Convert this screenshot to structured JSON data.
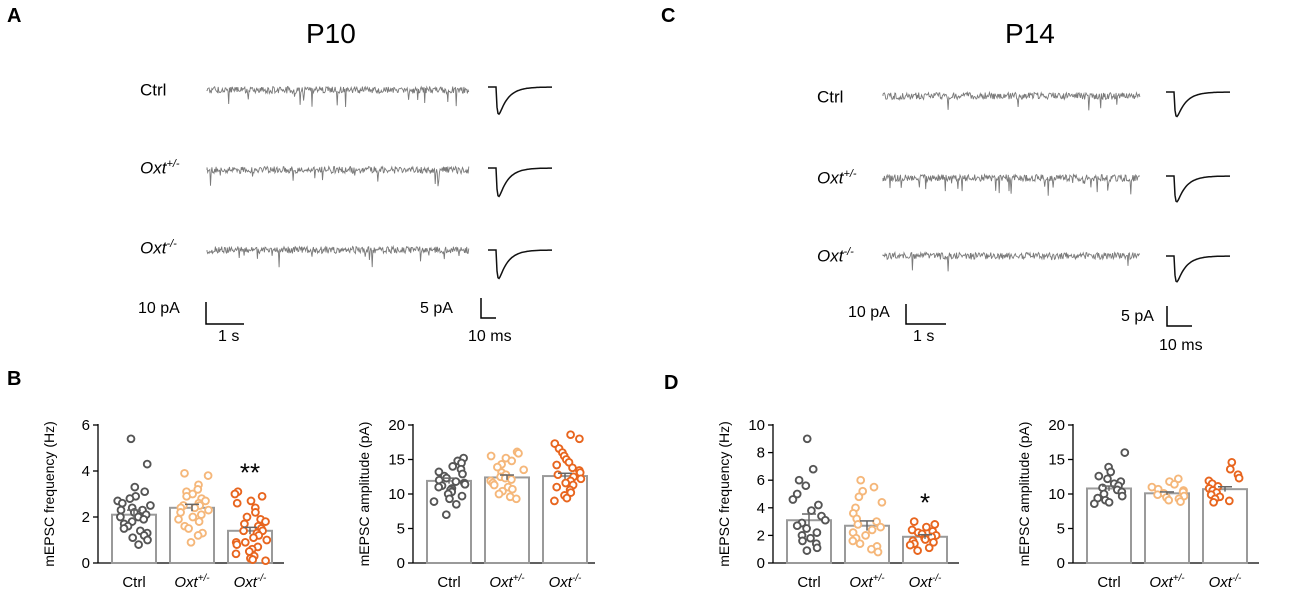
{
  "panels": {
    "A": {
      "letter": "A",
      "title": "P10",
      "rows": [
        {
          "label_main": "Ctrl",
          "label_sup": ""
        },
        {
          "label_main": "Oxt",
          "label_sup": "+/-"
        },
        {
          "label_main": "Oxt",
          "label_sup": "-/-"
        }
      ],
      "scale_trace": {
        "amp": "10 pA",
        "time": "1 s"
      },
      "scale_event": {
        "amp": "5 pA",
        "time": "10 ms"
      }
    },
    "C": {
      "letter": "C",
      "title": "P14",
      "rows": [
        {
          "label_main": "Ctrl",
          "label_sup": ""
        },
        {
          "label_main": "Oxt",
          "label_sup": "+/-"
        },
        {
          "label_main": "Oxt",
          "label_sup": "-/-"
        }
      ],
      "scale_trace": {
        "amp": "10 pA",
        "time": "1 s"
      },
      "scale_event": {
        "amp": "5 pA",
        "time": "10 ms"
      }
    },
    "B": {
      "letter": "B"
    },
    "D": {
      "letter": "D"
    }
  },
  "colors": {
    "trace": "#7a7a7a",
    "event": "#111111",
    "ctrl": "#555555",
    "het": "#f5b77a",
    "ko": "#e8651e"
  },
  "chart_data": [
    {
      "id": "B-frequency",
      "type": "bar",
      "ylabel": "mEPSC frequency (Hz)",
      "ylim": [
        0,
        6
      ],
      "yticks": [
        0,
        2,
        4,
        6
      ],
      "categories": [
        {
          "main": "Ctrl",
          "sup": ""
        },
        {
          "main": "Oxt",
          "sup": "+/-"
        },
        {
          "main": "Oxt",
          "sup": "-/-"
        }
      ],
      "means": [
        2.1,
        2.4,
        1.4
      ],
      "sem": [
        0.2,
        0.15,
        0.15
      ],
      "significance": [
        "",
        "",
        "**"
      ],
      "points": [
        [
          5.4,
          4.3,
          3.3,
          3.1,
          2.9,
          2.8,
          2.7,
          2.6,
          2.5,
          2.4,
          2.3,
          2.3,
          2.2,
          2.1,
          2.0,
          2.0,
          1.9,
          1.8,
          1.7,
          1.6,
          1.5,
          1.4,
          1.3,
          1.2,
          1.1,
          1.0,
          0.8
        ],
        [
          3.9,
          3.8,
          3.4,
          3.2,
          3.1,
          3.0,
          2.9,
          2.8,
          2.7,
          2.6,
          2.5,
          2.5,
          2.4,
          2.4,
          2.3,
          2.2,
          2.1,
          2.0,
          1.9,
          1.8,
          1.6,
          1.5,
          1.3,
          1.2,
          0.9
        ],
        [
          3.1,
          3.0,
          2.9,
          2.7,
          2.6,
          2.4,
          2.2,
          2.0,
          1.9,
          1.8,
          1.7,
          1.6,
          1.5,
          1.4,
          1.4,
          1.3,
          1.2,
          1.1,
          1.0,
          0.9,
          0.9,
          0.8,
          0.7,
          0.6,
          0.5,
          0.4,
          0.3,
          0.2,
          0.15,
          0.1
        ]
      ]
    },
    {
      "id": "B-amplitude",
      "type": "bar",
      "ylabel": "mEPSC amplitude (pA)",
      "ylim": [
        0,
        20
      ],
      "yticks": [
        0,
        5,
        10,
        15,
        20
      ],
      "categories": [
        {
          "main": "Ctrl",
          "sup": ""
        },
        {
          "main": "Oxt",
          "sup": "+/-"
        },
        {
          "main": "Oxt",
          "sup": "-/-"
        }
      ],
      "means": [
        11.9,
        12.4,
        12.6
      ],
      "sem": [
        0.4,
        0.35,
        0.4
      ],
      "significance": [
        "",
        "",
        ""
      ],
      "points": [
        [
          15.2,
          14.8,
          14.5,
          14.0,
          13.6,
          13.2,
          12.9,
          12.6,
          12.3,
          12.0,
          11.8,
          11.6,
          11.4,
          11.2,
          11.0,
          10.8,
          10.6,
          10.3,
          10.0,
          9.7,
          9.3,
          8.9,
          8.5,
          7.0
        ],
        [
          16.1,
          15.9,
          15.5,
          15.2,
          14.8,
          14.3,
          13.9,
          13.5,
          13.1,
          12.8,
          12.5,
          12.3,
          12.1,
          11.9,
          11.6,
          11.3,
          11.0,
          10.7,
          10.4,
          10.0,
          9.6,
          9.3
        ],
        [
          18.6,
          18.0,
          17.3,
          16.6,
          16.0,
          15.5,
          15.0,
          14.6,
          14.2,
          13.8,
          13.4,
          13.1,
          12.8,
          12.5,
          12.2,
          11.9,
          11.6,
          11.3,
          11.0,
          10.6,
          10.2,
          9.8,
          9.4,
          9.0
        ]
      ]
    },
    {
      "id": "D-frequency",
      "type": "bar",
      "ylabel": "mEPSC frequency (Hz)",
      "ylim": [
        0,
        10
      ],
      "yticks": [
        0,
        2,
        4,
        6,
        8,
        10
      ],
      "categories": [
        {
          "main": "Ctrl",
          "sup": ""
        },
        {
          "main": "Oxt",
          "sup": "+/-"
        },
        {
          "main": "Oxt",
          "sup": "-/-"
        }
      ],
      "means": [
        3.1,
        2.7,
        1.9
      ],
      "sem": [
        0.45,
        0.35,
        0.15
      ],
      "significance": [
        "",
        "",
        "*"
      ],
      "points": [
        [
          9.0,
          6.8,
          6.0,
          5.6,
          5.0,
          4.6,
          4.2,
          3.8,
          3.4,
          3.1,
          2.9,
          2.7,
          2.5,
          2.2,
          2.0,
          1.8,
          1.6,
          1.4,
          1.1,
          0.9
        ],
        [
          6.0,
          5.5,
          5.2,
          4.8,
          4.4,
          4.0,
          3.6,
          3.2,
          3.0,
          2.8,
          2.6,
          2.4,
          2.2,
          2.0,
          1.8,
          1.6,
          1.4,
          1.2,
          1.0,
          0.8
        ],
        [
          3.0,
          2.8,
          2.6,
          2.4,
          2.3,
          2.2,
          2.1,
          2.0,
          1.9,
          1.8,
          1.7,
          1.6,
          1.5,
          1.4,
          1.3,
          1.1,
          0.9
        ]
      ]
    },
    {
      "id": "D-amplitude",
      "type": "bar",
      "ylabel": "mEPSC amplitude (pA)",
      "ylim": [
        0,
        20
      ],
      "yticks": [
        0,
        5,
        10,
        15,
        20
      ],
      "categories": [
        {
          "main": "Ctrl",
          "sup": ""
        },
        {
          "main": "Oxt",
          "sup": "+/-"
        },
        {
          "main": "Oxt",
          "sup": "-/-"
        }
      ],
      "means": [
        10.8,
        10.1,
        10.7
      ],
      "sem": [
        0.35,
        0.2,
        0.35
      ],
      "significance": [
        "",
        "",
        ""
      ],
      "points": [
        [
          16.0,
          13.9,
          13.2,
          12.6,
          12.2,
          11.8,
          11.5,
          11.2,
          10.9,
          10.6,
          10.3,
          10.0,
          9.7,
          9.4,
          9.1,
          8.8,
          8.6
        ],
        [
          12.2,
          11.8,
          11.4,
          11.0,
          10.7,
          10.5,
          10.3,
          10.1,
          9.9,
          9.7,
          9.5,
          9.3,
          9.1,
          8.9
        ],
        [
          14.6,
          13.6,
          12.8,
          12.3,
          11.9,
          11.5,
          11.1,
          10.8,
          10.5,
          10.2,
          9.9,
          9.6,
          9.3,
          9.0,
          8.8
        ]
      ]
    }
  ]
}
